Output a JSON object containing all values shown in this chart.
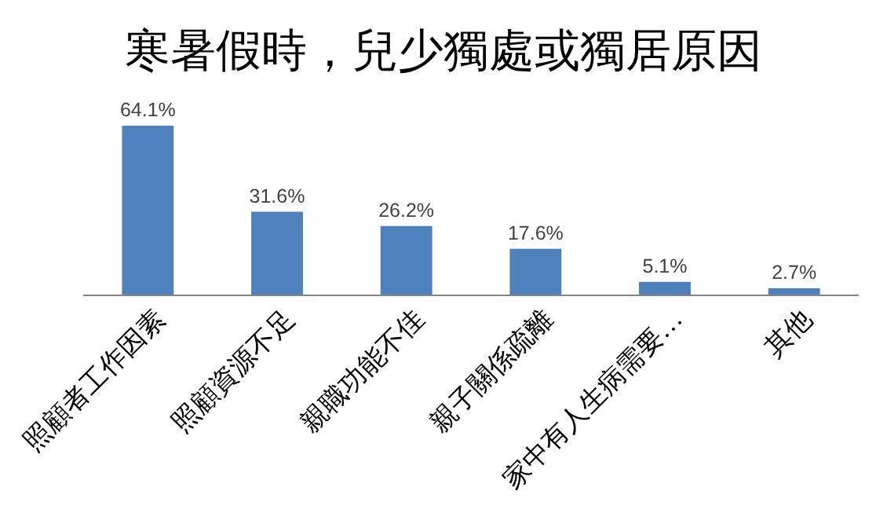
{
  "chart_data": {
    "type": "bar",
    "title": "寒暑假時，兒少獨處或獨居原因",
    "categories": [
      "照顧者工作因素",
      "照顧資源不足",
      "親職功能不佳",
      "親子關係疏離",
      "家中有人生病需要…",
      "其他"
    ],
    "values": [
      64.1,
      31.6,
      26.2,
      17.6,
      5.1,
      2.7
    ],
    "value_labels": [
      "64.1%",
      "31.6%",
      "26.2%",
      "17.6%",
      "5.1%",
      "2.7%"
    ],
    "color": "#4f81bd"
  }
}
